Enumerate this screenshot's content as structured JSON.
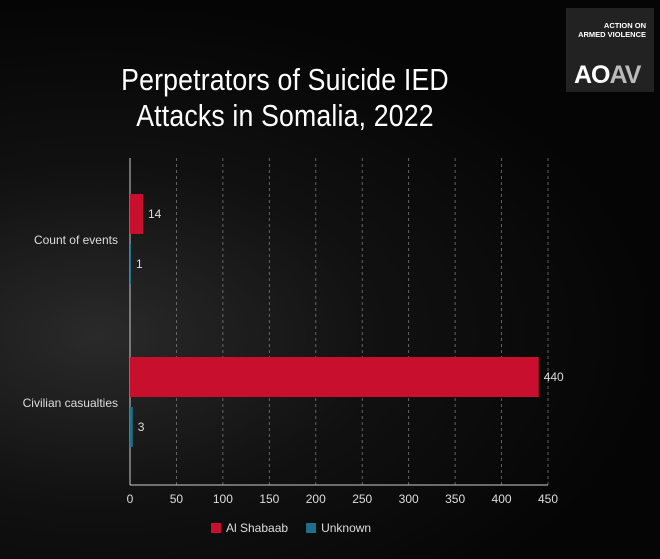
{
  "logo": {
    "line1": "ACTION ON",
    "line2": "ARMED VIOLENCE",
    "mark_a": "AO",
    "mark_b": "AV"
  },
  "chart_data": {
    "type": "bar",
    "orientation": "horizontal",
    "title": "Perpetrators of Suicide IED Attacks in Somalia, 2022",
    "categories": [
      "Count of events",
      "Civilian casualties"
    ],
    "series": [
      {
        "name": "Al Shabaab",
        "color": "#c8102e",
        "values": [
          14,
          440
        ]
      },
      {
        "name": "Unknown",
        "color": "#1f6f8b",
        "values": [
          1,
          3
        ]
      }
    ],
    "xlim": [
      0,
      450
    ],
    "xticks": [
      0,
      50,
      100,
      150,
      200,
      250,
      300,
      350,
      400,
      450
    ],
    "grid": true,
    "legend": "bottom-center"
  }
}
